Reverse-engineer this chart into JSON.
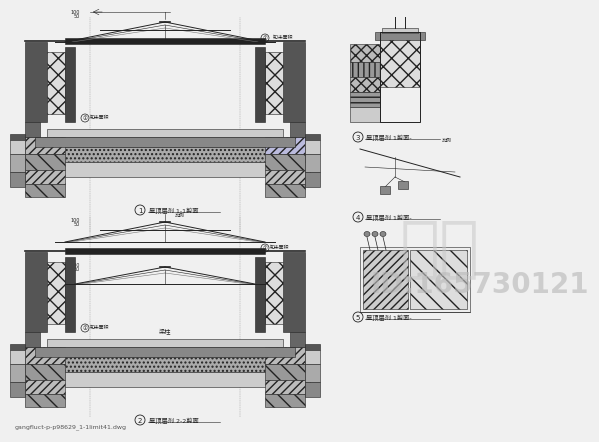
{
  "bg_color": "#f0f0f0",
  "line_color": "#222222",
  "dark_fill": "#444444",
  "mid_fill": "#888888",
  "light_fill": "#cccccc",
  "hatch_fill": "#aaaaaa",
  "watermark_text": "知未",
  "watermark_color": "#c8c8c8",
  "id_text": "ID:165730121",
  "id_color": "#bbbbbb",
  "id_fontsize": 20,
  "watermark_fontsize": 48,
  "filename_text": "gangfluct-p-p98629_1-1limit41.dwg",
  "filename_fontsize": 4.5
}
